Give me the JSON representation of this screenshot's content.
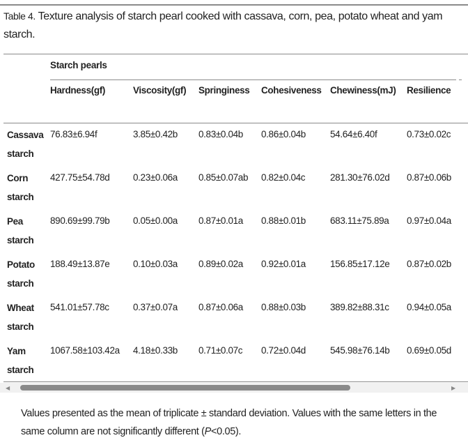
{
  "caption": {
    "label": "Table 4.",
    "text": " Texture analysis of starch pearl cooked with cassava, corn, pea, potato wheat and yam starch."
  },
  "table": {
    "group_header": "Starch pearls",
    "columns": [
      "Hardness(gf)",
      "Viscosity(gf)",
      "Springiness",
      "Cohesiveness",
      "Chewiness(mJ)",
      "Resilience"
    ],
    "rows": [
      {
        "label": [
          "Cassava",
          "starch"
        ],
        "values": [
          "76.83±6.94f",
          "3.85±0.42b",
          "0.83±0.04b",
          "0.86±0.04b",
          "54.64±6.40f",
          "0.73±0.02c"
        ]
      },
      {
        "label": [
          "Corn",
          "starch"
        ],
        "values": [
          "427.75±54.78d",
          "0.23±0.06a",
          "0.85±0.07ab",
          "0.82±0.04c",
          "281.30±76.02d",
          "0.87±0.06b"
        ]
      },
      {
        "label": [
          "Pea",
          "starch"
        ],
        "values": [
          "890.69±99.79b",
          "0.05±0.00a",
          "0.87±0.01a",
          "0.88±0.01b",
          "683.11±75.89a",
          "0.97±0.04a"
        ]
      },
      {
        "label": [
          "Potato",
          "starch"
        ],
        "values": [
          "188.49±13.87e",
          "0.10±0.03a",
          "0.89±0.02a",
          "0.92±0.01a",
          "156.85±17.12e",
          "0.87±0.02b"
        ]
      },
      {
        "label": [
          "Wheat",
          "starch"
        ],
        "values": [
          "541.01±57.78c",
          "0.37±0.07a",
          "0.87±0.06a",
          "0.88±0.03b",
          "389.82±88.31c",
          "0.94±0.05a"
        ]
      },
      {
        "label": [
          "Yam",
          "starch"
        ],
        "values": [
          "1067.58±103.42a",
          "4.18±0.33b",
          "0.71±0.07c",
          "0.72±0.04d",
          "545.98±76.14b",
          "0.69±0.05d"
        ]
      }
    ]
  },
  "footnote": {
    "before": "Values presented as the mean of triplicate ± standard deviation. Values with the same letters in the same column are not significantly different (",
    "italic": "P",
    "after": "<0.05)."
  }
}
